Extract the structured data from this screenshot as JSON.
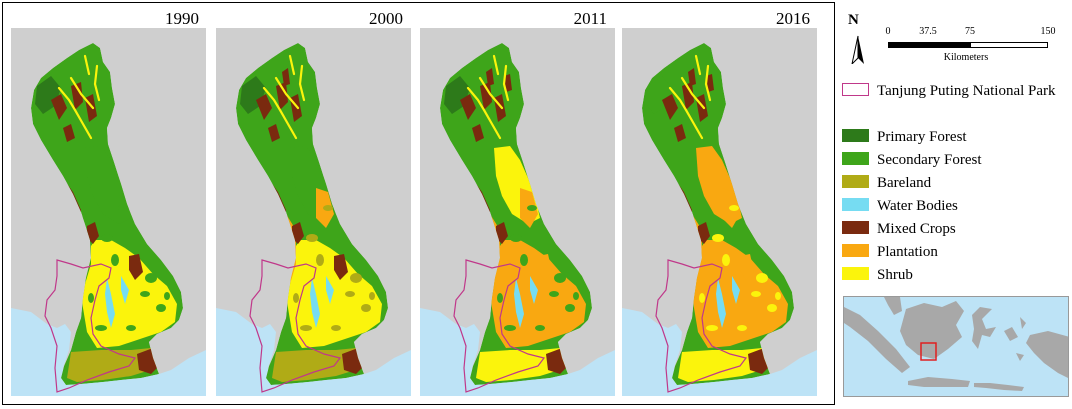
{
  "panels": [
    {
      "year": "1990",
      "scheme": "p1990"
    },
    {
      "year": "2000",
      "scheme": "p2000"
    },
    {
      "year": "2011",
      "scheme": "p2011"
    },
    {
      "year": "2016",
      "scheme": "p2016"
    }
  ],
  "north_arrow": {
    "label": "N"
  },
  "scale_bar": {
    "ticks": [
      "0",
      "37.5",
      "75",
      "150"
    ],
    "unit": "Kilometers"
  },
  "legend": {
    "boundary_label": "Tanjung Puting National Park",
    "items": [
      {
        "label": "Primary Forest",
        "color": "#2d7a1a"
      },
      {
        "label": "Secondary Forest",
        "color": "#3ea51a"
      },
      {
        "label": "Bareland",
        "color": "#b0ab16"
      },
      {
        "label": "Water Bodies",
        "color": "#76dcf2"
      },
      {
        "label": "Mixed Crops",
        "color": "#7a2a0f"
      },
      {
        "label": "Plantation",
        "color": "#f9a811"
      },
      {
        "label": "Shrub",
        "color": "#fbf40c"
      }
    ],
    "boundary_color": "#c0388a"
  },
  "colors": {
    "land_background": "#cfcfcf",
    "sea": "#bde3f6",
    "inset_land": "#a8a8a8",
    "inset_highlight": "#e02020"
  }
}
